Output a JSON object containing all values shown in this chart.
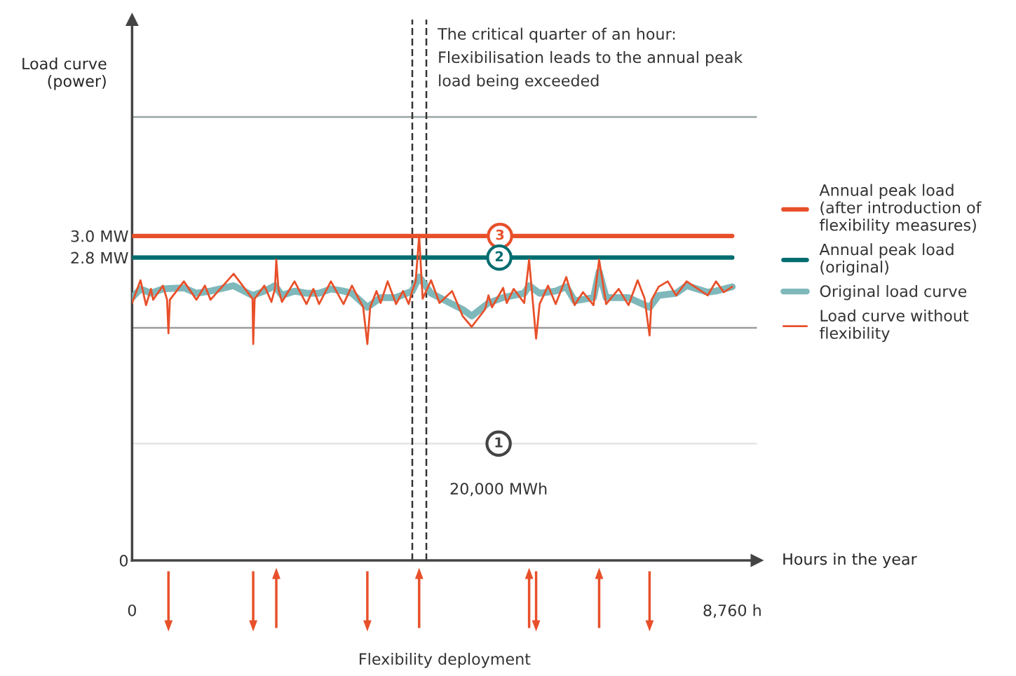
{
  "chart_data": {
    "type": "line",
    "ylabel": "Load curve\n(power)",
    "xlabel": "Hours in the year",
    "xlim": [
      0,
      9120
    ],
    "xticks": [
      0,
      {
        "value": 8760,
        "label": "8,760 h"
      }
    ],
    "ylim": [
      0,
      5.0
    ],
    "yticks": [
      0,
      {
        "value": 2.8,
        "label": "2.8 MW"
      },
      {
        "value": 3.0,
        "label": "3.0 MW"
      }
    ],
    "legend": "right",
    "grid": false,
    "series": [
      {
        "name": "Annual peak load\n(after introduction of\nflexibility measures)",
        "color": "#e8502a",
        "x": [
          0,
          8760
        ],
        "values": [
          3.0,
          3.0
        ]
      },
      {
        "name": "Annual peak load\n(original)",
        "color": "#006d70",
        "x": [
          0,
          8760
        ],
        "values": [
          2.8,
          2.8
        ]
      },
      {
        "name": "Original load curve",
        "color": "#7fb8bb",
        "x": [
          0,
          123,
          276,
          450,
          756,
          940,
          1145,
          1482,
          1758,
          1931,
          2085,
          2187,
          2371,
          2545,
          2729,
          2902,
          3086,
          3209,
          3434,
          3628,
          3853,
          4088,
          4190,
          4364,
          4487,
          4824,
          4957,
          5202,
          5416,
          5723,
          5795,
          5948,
          6183,
          6337,
          6459,
          6735,
          6817,
          6919,
          7246,
          7553,
          7686,
          7941,
          8094,
          8401,
          8523,
          8760
        ],
        "values": [
          2.43,
          2.51,
          2.47,
          2.51,
          2.52,
          2.47,
          2.49,
          2.54,
          2.45,
          2.49,
          2.54,
          2.45,
          2.49,
          2.47,
          2.47,
          2.51,
          2.49,
          2.47,
          2.34,
          2.43,
          2.43,
          2.49,
          2.62,
          2.47,
          2.43,
          2.32,
          2.26,
          2.38,
          2.43,
          2.47,
          2.54,
          2.47,
          2.49,
          2.53,
          2.4,
          2.43,
          2.67,
          2.43,
          2.43,
          2.34,
          2.45,
          2.47,
          2.54,
          2.48,
          2.49,
          2.53
        ]
      },
      {
        "name": "Load curve without\nflexibility",
        "color": "#e8502a",
        "x": [
          0,
          123,
          204,
          276,
          307,
          450,
          511,
          531,
          552,
          756,
          940,
          1063,
          1145,
          1482,
          1758,
          1768,
          1789,
          1931,
          2034,
          2085,
          2105,
          2136,
          2187,
          2371,
          2545,
          2647,
          2729,
          2902,
          3086,
          3209,
          3373,
          3434,
          3475,
          3567,
          3628,
          3730,
          3853,
          3955,
          4037,
          4088,
          4139,
          4190,
          4241,
          4364,
          4487,
          4671,
          4824,
          4957,
          5151,
          5202,
          5253,
          5416,
          5468,
          5570,
          5723,
          5795,
          5897,
          5948,
          6071,
          6183,
          6337,
          6459,
          6582,
          6735,
          6817,
          6919,
          7103,
          7246,
          7379,
          7481,
          7553,
          7583,
          7686,
          7818,
          7941,
          8094,
          8401,
          8523,
          8636,
          8760
        ],
        "values": [
          2.38,
          2.59,
          2.36,
          2.51,
          2.41,
          2.54,
          2.41,
          2.1,
          2.41,
          2.58,
          2.41,
          2.54,
          2.41,
          2.65,
          2.42,
          2.0,
          2.42,
          2.54,
          2.39,
          2.51,
          2.78,
          2.51,
          2.39,
          2.58,
          2.37,
          2.51,
          2.37,
          2.58,
          2.37,
          2.54,
          2.34,
          2.0,
          2.34,
          2.49,
          2.38,
          2.58,
          2.37,
          2.49,
          2.37,
          2.49,
          2.58,
          3.0,
          2.42,
          2.59,
          2.38,
          2.49,
          2.26,
          2.16,
          2.32,
          2.45,
          2.34,
          2.52,
          2.38,
          2.51,
          2.38,
          2.78,
          2.05,
          2.37,
          2.54,
          2.37,
          2.62,
          2.36,
          2.48,
          2.36,
          2.78,
          2.37,
          2.51,
          2.36,
          2.59,
          2.42,
          2.08,
          2.41,
          2.53,
          2.58,
          2.45,
          2.58,
          2.45,
          2.58,
          2.48,
          2.53
        ]
      }
    ],
    "ref_lines": [
      {
        "axis": "y",
        "value": 4.1,
        "color": "#9aa5a5"
      },
      {
        "axis": "y",
        "value": 2.15,
        "color": "#9a9a9a"
      },
      {
        "axis": "y",
        "value": 1.08,
        "color": "#e4e4e4"
      },
      {
        "axis": "x",
        "value": 4090,
        "color": "#333333",
        "line_style": "dashed",
        "label": "The critical quarter of an hour:\nFlexibilisation leads to the annual peak\nload being exceeded"
      },
      {
        "axis": "x",
        "value": 4295,
        "color": "#333333",
        "line_style": "dashed"
      }
    ],
    "annotations": [
      {
        "text": "3",
        "x": 5370,
        "y": 3.0
      },
      {
        "text": "2",
        "x": 5360,
        "y": 2.8
      },
      {
        "text": "1",
        "x": 5350,
        "y": 1.08
      },
      "20,000 MWh",
      "Flexibility deployment"
    ]
  }
}
